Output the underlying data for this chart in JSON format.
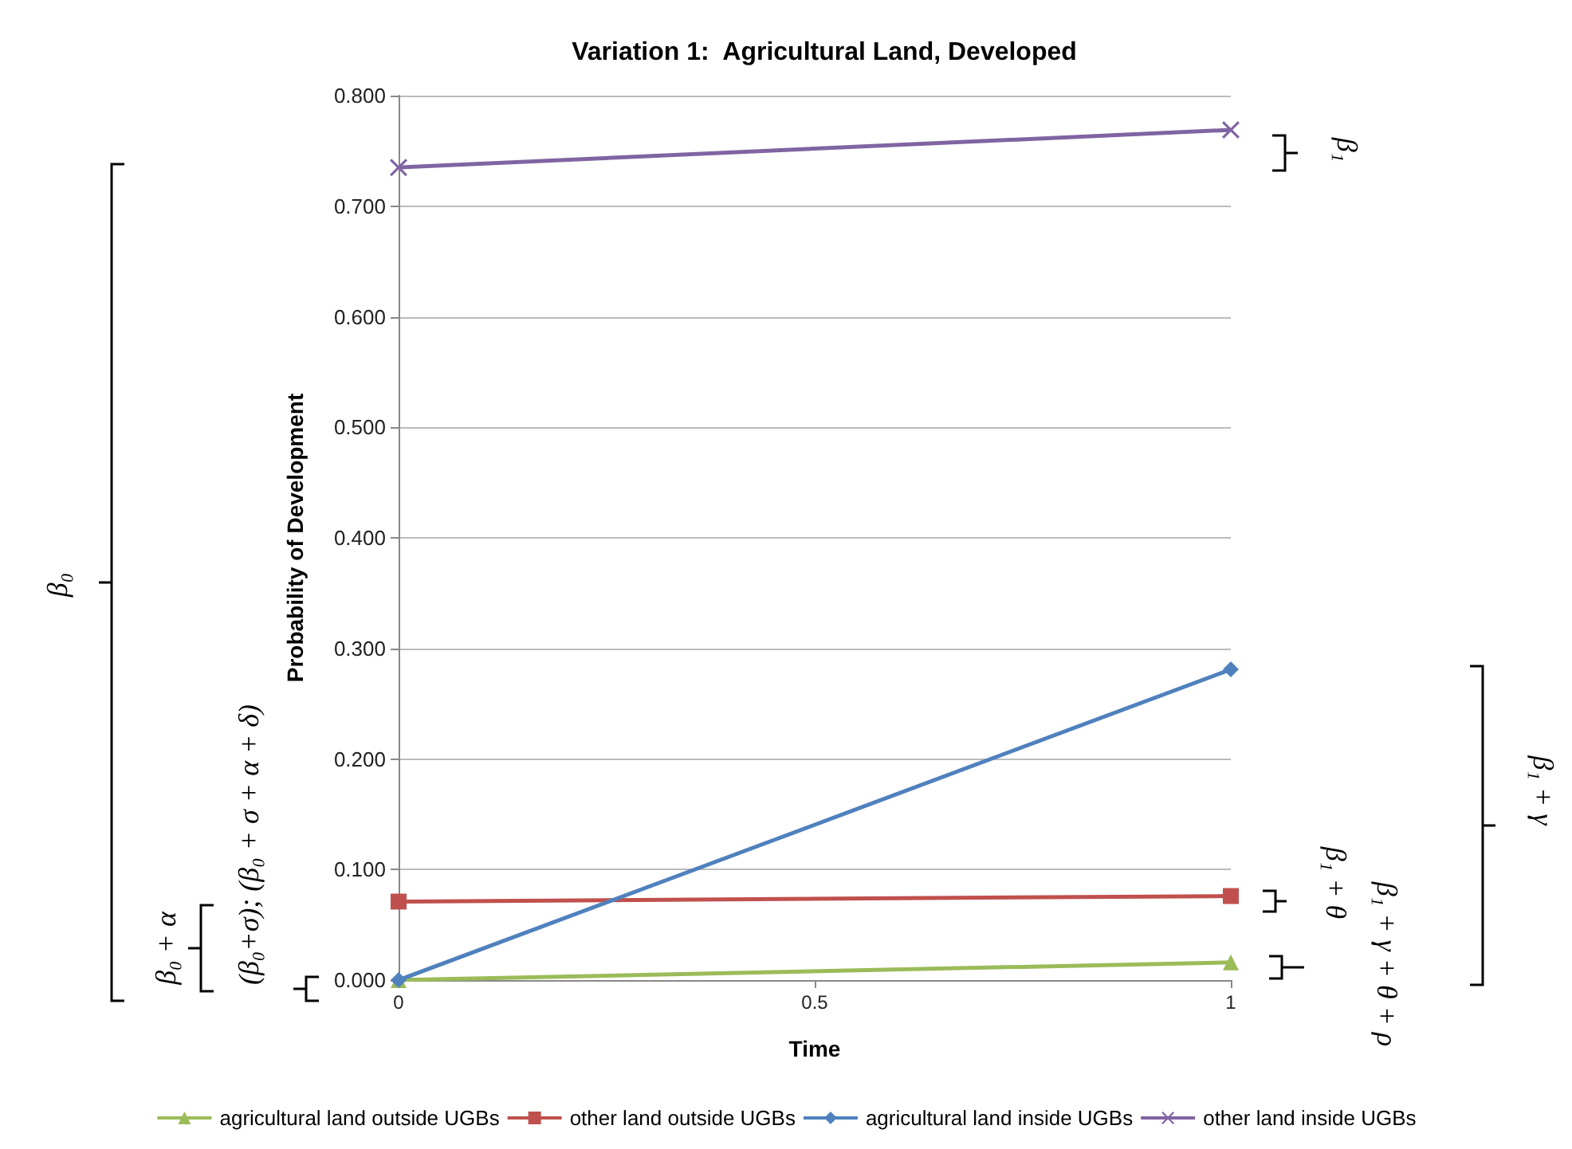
{
  "chart_data": {
    "type": "line",
    "title": "Variation 1:  Agricultural Land, Developed",
    "xlabel": "Time",
    "ylabel": "Probability of Development",
    "x": [
      0,
      1
    ],
    "xlim": [
      0,
      1
    ],
    "xticks": [
      0,
      0.5,
      1
    ],
    "ylim": [
      0,
      0.8
    ],
    "yticks": [
      {
        "value": 0,
        "label": "0.000"
      },
      {
        "value": 0.1,
        "label": "0.100"
      },
      {
        "value": 0.2,
        "label": "0.200"
      },
      {
        "value": 0.3,
        "label": "0.300"
      },
      {
        "value": 0.4,
        "label": "0.400"
      },
      {
        "value": 0.5,
        "label": "0.500"
      },
      {
        "value": 0.6,
        "label": "0.600"
      },
      {
        "value": 0.7,
        "label": "0.700"
      },
      {
        "value": 0.8,
        "label": "0.800"
      }
    ],
    "grid": "y",
    "legend": "bottom",
    "series": [
      {
        "name": "agricultural land outside UGBs",
        "color": "#9bbb59",
        "marker": "triangle",
        "values": [
          0,
          0.016
        ]
      },
      {
        "name": "other land outside UGBs",
        "color": "#c0504d",
        "marker": "square",
        "values": [
          0.071,
          0.076
        ]
      },
      {
        "name": "agricultural land inside UGBs",
        "color": "#4f81bd",
        "marker": "diamond",
        "values": [
          0,
          0.281
        ]
      },
      {
        "name": "other land inside UGBs",
        "color": "#8064a2",
        "marker": "cross",
        "values": [
          0.735,
          0.769
        ]
      }
    ],
    "annotations": [
      "β₀",
      "β₀ + α",
      "(β₀+σ);  (β₀ + σ + α + δ)",
      "β₁",
      "β₁ + γ",
      "β₁ + θ",
      "β₁ + γ + θ + ρ"
    ]
  }
}
